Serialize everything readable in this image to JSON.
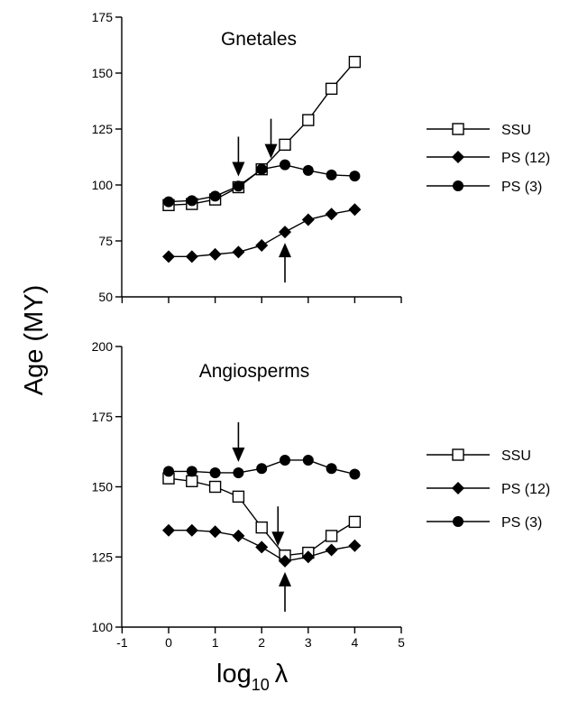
{
  "chart_data": [
    {
      "type": "line",
      "title": "Gnetales",
      "ylabel": "Age (MY)",
      "xlabel": "log10 λ",
      "ylim": [
        50,
        175
      ],
      "y_ticks": [
        "50",
        "75",
        "100",
        "125",
        "150",
        "175"
      ],
      "x": [
        0,
        0.5,
        1,
        1.5,
        2,
        2.5,
        3,
        3.5,
        4
      ],
      "series": [
        {
          "name": "SSU",
          "marker": "open-square",
          "values": [
            91,
            91.5,
            93.5,
            99,
            107,
            118,
            129,
            143,
            155
          ]
        },
        {
          "name": "PS (12)",
          "marker": "filled-diamond",
          "values": [
            68,
            68,
            69,
            70,
            73,
            79,
            84.5,
            87,
            89
          ]
        },
        {
          "name": "PS (3)",
          "marker": "filled-circle",
          "values": [
            92.5,
            93,
            95,
            99.5,
            107,
            109,
            106.5,
            104.5,
            104
          ]
        }
      ],
      "arrows": [
        {
          "direction": "down",
          "x": 1.5,
          "y": 99
        },
        {
          "direction": "down",
          "x": 2.2,
          "y": 107
        },
        {
          "direction": "up",
          "x": 2.5,
          "y": 79
        }
      ],
      "legend": "right"
    },
    {
      "type": "line",
      "title": "Angiosperms",
      "ylabel": "Age (MY)",
      "xlabel": "log10 λ",
      "ylim": [
        100,
        200
      ],
      "xlim": [
        -1,
        5
      ],
      "y_ticks": [
        "100",
        "125",
        "150",
        "175",
        "200"
      ],
      "x_ticks": [
        "-1",
        "0",
        "1",
        "2",
        "3",
        "4",
        "5"
      ],
      "x": [
        0,
        0.5,
        1,
        1.5,
        2,
        2.5,
        3,
        3.5,
        4
      ],
      "series": [
        {
          "name": "SSU",
          "marker": "open-square",
          "values": [
            153,
            152,
            150,
            146.5,
            135.5,
            125.5,
            126.5,
            132.5,
            137.5
          ]
        },
        {
          "name": "PS (12)",
          "marker": "filled-diamond",
          "values": [
            134.5,
            134.5,
            134,
            132.5,
            128.5,
            123.5,
            125,
            127.5,
            129
          ]
        },
        {
          "name": "PS (3)",
          "marker": "filled-circle",
          "values": [
            155.5,
            155.5,
            155,
            155,
            156.5,
            159.5,
            159.5,
            156.5,
            154.5
          ]
        }
      ],
      "arrows": [
        {
          "direction": "down",
          "x": 1.5,
          "y": 155
        },
        {
          "direction": "down",
          "x": 2.35,
          "y": 125
        },
        {
          "direction": "up",
          "x": 2.5,
          "y": 123.5
        }
      ],
      "legend": "right"
    }
  ],
  "axis_text": {
    "ylabel": "Age (MY)",
    "xlabel_main": "log",
    "xlabel_sub": "10",
    "xlabel_symbol": "λ"
  }
}
